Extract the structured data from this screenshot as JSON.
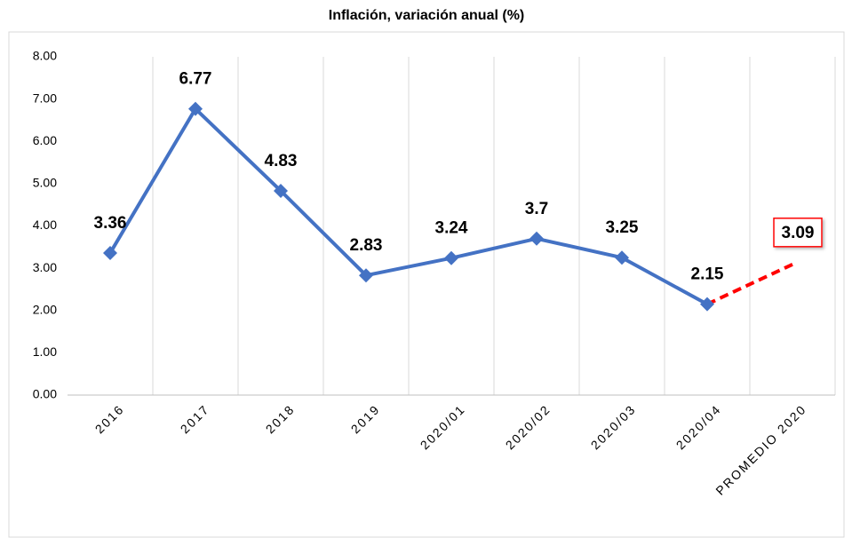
{
  "chart_data": {
    "type": "line",
    "title": "Inflación, variación anual (%)",
    "categories": [
      "2016",
      "2017",
      "2018",
      "2019",
      "2020/01",
      "2020/02",
      "2020/03",
      "2020/04",
      "PROMEDIO 2020"
    ],
    "values": [
      3.36,
      6.77,
      4.83,
      2.83,
      3.24,
      3.7,
      3.25,
      2.15,
      3.09
    ],
    "color": "#4472c4",
    "highlight_color": "#ff0000",
    "ylim": [
      0,
      8
    ],
    "yticks": [
      {
        "value": 0,
        "label": "0.00"
      },
      {
        "value": 1,
        "label": "1.00"
      },
      {
        "value": 2,
        "label": "2.00"
      },
      {
        "value": 3,
        "label": "3.00"
      },
      {
        "value": 4,
        "label": "4.00"
      },
      {
        "value": 5,
        "label": "5.00"
      },
      {
        "value": 6,
        "label": "6.00"
      },
      {
        "value": 7,
        "label": "7.00"
      },
      {
        "value": 8,
        "label": "8.00"
      }
    ],
    "grid": true
  }
}
